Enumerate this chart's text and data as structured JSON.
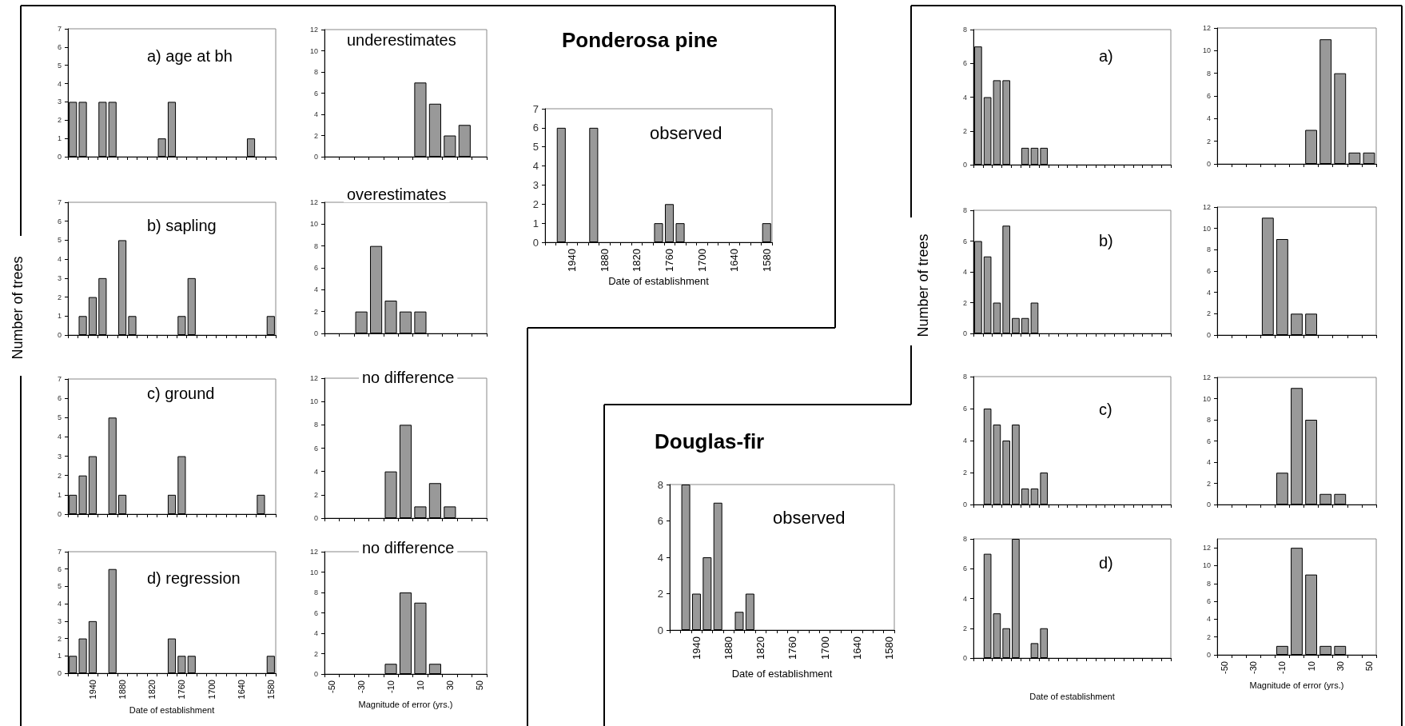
{
  "chart_data": [
    {
      "type": "bar",
      "title": "a) age at bh",
      "categories": [
        null,
        null,
        "1940",
        null,
        null,
        "1880",
        null,
        null,
        "1820",
        null,
        null,
        "1760",
        null,
        null,
        "1700",
        null,
        null,
        "1640",
        null,
        null,
        "1580"
      ],
      "values": [
        3,
        3,
        0,
        3,
        3,
        0,
        0,
        0,
        0,
        1,
        3,
        0,
        0,
        0,
        0,
        0,
        0,
        0,
        1,
        0,
        0
      ],
      "color": "#999999",
      "ylim": [
        0,
        7
      ],
      "yticks": [
        0,
        1,
        2,
        3,
        4,
        5,
        6,
        7
      ],
      "tick_labels": "y"
    },
    {
      "type": "bar",
      "title": "underestimates",
      "categories": [
        "-50",
        null,
        "-30",
        null,
        "-10",
        null,
        "10",
        null,
        "30",
        null,
        "50"
      ],
      "values": [
        0,
        0,
        0,
        0,
        0,
        0,
        7,
        5,
        2,
        3,
        0
      ],
      "color": "#999999",
      "ylim": [
        0,
        12
      ],
      "yticks": [
        0,
        2,
        4,
        6,
        8,
        10,
        12
      ],
      "tick_labels": "y"
    },
    {
      "type": "bar",
      "title": "b) sapling",
      "ylabel": "Number of trees",
      "categories": [
        null,
        null,
        "1940",
        null,
        null,
        "1880",
        null,
        null,
        "1820",
        null,
        null,
        "1760",
        null,
        null,
        "1700",
        null,
        null,
        "1640",
        null,
        null,
        "1580"
      ],
      "values": [
        0,
        1,
        2,
        3,
        0,
        5,
        1,
        0,
        0,
        0,
        0,
        1,
        3,
        0,
        0,
        0,
        0,
        0,
        0,
        0,
        1
      ],
      "color": "#999999",
      "ylim": [
        0,
        7
      ],
      "yticks": [
        0,
        1,
        2,
        3,
        4,
        5,
        6,
        7
      ],
      "tick_labels": "y"
    },
    {
      "type": "bar",
      "title": "overestimates",
      "categories": [
        "-50",
        null,
        "-30",
        null,
        "-10",
        null,
        "10",
        null,
        "30",
        null,
        "50"
      ],
      "values": [
        0,
        0,
        2,
        8,
        3,
        2,
        2,
        0,
        0,
        0,
        0
      ],
      "color": "#999999",
      "ylim": [
        0,
        12
      ],
      "yticks": [
        0,
        2,
        4,
        6,
        8,
        10,
        12
      ],
      "tick_labels": "y"
    },
    {
      "type": "bar",
      "title": "c) ground",
      "categories": [
        null,
        null,
        "1940",
        null,
        null,
        "1880",
        null,
        null,
        "1820",
        null,
        null,
        "1760",
        null,
        null,
        "1700",
        null,
        null,
        "1640",
        null,
        null,
        "1580"
      ],
      "values": [
        1,
        2,
        3,
        0,
        5,
        1,
        0,
        0,
        0,
        0,
        1,
        3,
        0,
        0,
        0,
        0,
        0,
        0,
        0,
        1,
        0
      ],
      "color": "#999999",
      "ylim": [
        0,
        7
      ],
      "yticks": [
        0,
        1,
        2,
        3,
        4,
        5,
        6,
        7
      ],
      "tick_labels": "y"
    },
    {
      "type": "bar",
      "title": "no difference",
      "categories": [
        "-50",
        null,
        "-30",
        null,
        "-10",
        null,
        "10",
        null,
        "30",
        null,
        "50"
      ],
      "values": [
        0,
        0,
        0,
        0,
        4,
        8,
        1,
        3,
        1,
        0,
        0
      ],
      "color": "#999999",
      "ylim": [
        0,
        12
      ],
      "yticks": [
        0,
        2,
        4,
        6,
        8,
        10,
        12
      ],
      "tick_labels": "y"
    },
    {
      "type": "bar",
      "title": "d) regression",
      "xlabel": "Date of establishment",
      "categories": [
        null,
        null,
        "1940",
        null,
        null,
        "1880",
        null,
        null,
        "1820",
        null,
        null,
        "1760",
        null,
        null,
        "1700",
        null,
        null,
        "1640",
        null,
        null,
        "1580"
      ],
      "values": [
        1,
        2,
        3,
        0,
        6,
        0,
        0,
        0,
        0,
        0,
        2,
        1,
        1,
        0,
        0,
        0,
        0,
        0,
        0,
        0,
        1
      ],
      "color": "#999999",
      "ylim": [
        0,
        7
      ],
      "yticks": [
        0,
        1,
        2,
        3,
        4,
        5,
        6,
        7
      ]
    },
    {
      "type": "bar",
      "title": "no difference",
      "xlabel": "Magnitude of error (yrs.)",
      "categories": [
        "-50",
        null,
        "-30",
        null,
        "-10",
        null,
        "10",
        null,
        "30",
        null,
        "50"
      ],
      "values": [
        0,
        0,
        0,
        0,
        1,
        8,
        7,
        1,
        0,
        0,
        0
      ],
      "color": "#999999",
      "ylim": [
        0,
        12
      ],
      "yticks": [
        0,
        2,
        4,
        6,
        8,
        10,
        12
      ]
    },
    {
      "type": "bar",
      "title": "Ponderosa pine",
      "annotations": [
        "observed"
      ],
      "xlabel": "Date of establishment",
      "categories": [
        null,
        null,
        "1940",
        null,
        null,
        "1880",
        null,
        null,
        "1820",
        null,
        null,
        "1760",
        null,
        null,
        "1700",
        null,
        null,
        "1640",
        null,
        null,
        "1580"
      ],
      "values": [
        0,
        6,
        0,
        0,
        6,
        0,
        0,
        0,
        0,
        0,
        1,
        2,
        1,
        0,
        0,
        0,
        0,
        0,
        0,
        0,
        1
      ],
      "color": "#999999",
      "ylim": [
        0,
        7
      ],
      "yticks": [
        0,
        1,
        2,
        3,
        4,
        5,
        6,
        7
      ]
    },
    {
      "type": "bar",
      "title": "Douglas-fir",
      "annotations": [
        "observed"
      ],
      "xlabel": "Date of establishment",
      "categories": [
        null,
        null,
        "1940",
        null,
        null,
        "1880",
        null,
        null,
        "1820",
        null,
        null,
        "1760",
        null,
        null,
        "1700",
        null,
        null,
        "1640",
        null,
        null,
        "1580"
      ],
      "values": [
        0,
        8,
        2,
        4,
        7,
        0,
        1,
        2,
        0,
        0,
        0,
        0,
        0,
        0,
        0,
        0,
        0,
        0,
        0,
        0,
        0
      ],
      "color": "#999999",
      "ylim": [
        0,
        8
      ],
      "yticks": [
        0,
        2,
        4,
        6,
        8
      ]
    },
    {
      "type": "bar",
      "title": "a)",
      "categories": [
        null,
        null,
        null,
        null,
        null,
        null,
        null,
        null,
        null,
        null,
        null,
        null,
        null,
        null,
        null,
        null,
        null,
        null,
        null,
        null,
        null
      ],
      "values": [
        7,
        4,
        5,
        5,
        0,
        1,
        1,
        1,
        0,
        0,
        0,
        0,
        0,
        0,
        0,
        0,
        0,
        0,
        0,
        0,
        0
      ],
      "color": "#999999",
      "ylim": [
        0,
        8
      ],
      "yticks": [
        0,
        2,
        4,
        6,
        8
      ]
    },
    {
      "type": "bar",
      "categories": [
        "-50",
        null,
        "-30",
        null,
        "-10",
        null,
        "10",
        null,
        "30",
        null,
        "50"
      ],
      "values": [
        0,
        0,
        0,
        0,
        0,
        0,
        3,
        11,
        8,
        1,
        1
      ],
      "color": "#999999",
      "ylim": [
        0,
        12
      ],
      "yticks": [
        0,
        2,
        4,
        6,
        8,
        10,
        12
      ],
      "tick_labels": "y"
    },
    {
      "type": "bar",
      "title": "b)",
      "ylabel": "Number of trees",
      "categories": [
        null,
        null,
        null,
        null,
        null,
        null,
        null,
        null,
        null,
        null,
        null,
        null,
        null,
        null,
        null,
        null,
        null,
        null,
        null,
        null,
        null
      ],
      "values": [
        6,
        5,
        2,
        7,
        1,
        1,
        2,
        0,
        0,
        0,
        0,
        0,
        0,
        0,
        0,
        0,
        0,
        0,
        0,
        0,
        0
      ],
      "color": "#999999",
      "ylim": [
        0,
        8
      ],
      "yticks": [
        0,
        2,
        4,
        6,
        8
      ]
    },
    {
      "type": "bar",
      "categories": [
        "-50",
        null,
        "-30",
        null,
        "-10",
        null,
        "10",
        null,
        "30",
        null,
        "50"
      ],
      "values": [
        0,
        0,
        0,
        11,
        9,
        2,
        2,
        0,
        0,
        0,
        0
      ],
      "color": "#999999",
      "ylim": [
        0,
        12
      ],
      "yticks": [
        0,
        2,
        4,
        6,
        8,
        10,
        12
      ],
      "tick_labels": "y"
    },
    {
      "type": "bar",
      "title": "c)",
      "categories": [
        null,
        null,
        null,
        null,
        null,
        null,
        null,
        null,
        null,
        null,
        null,
        null,
        null,
        null,
        null,
        null,
        null,
        null,
        null,
        null,
        null
      ],
      "values": [
        0,
        6,
        5,
        4,
        5,
        1,
        1,
        2,
        0,
        0,
        0,
        0,
        0,
        0,
        0,
        0,
        0,
        0,
        0,
        0,
        0
      ],
      "color": "#999999",
      "ylim": [
        0,
        8
      ],
      "yticks": [
        0,
        2,
        4,
        6,
        8
      ]
    },
    {
      "type": "bar",
      "categories": [
        "-50",
        null,
        "-30",
        null,
        "-10",
        null,
        "10",
        null,
        "30",
        null,
        "50"
      ],
      "values": [
        0,
        0,
        0,
        0,
        3,
        11,
        8,
        1,
        1,
        0,
        0
      ],
      "color": "#999999",
      "ylim": [
        0,
        12
      ],
      "yticks": [
        0,
        2,
        4,
        6,
        8,
        10,
        12
      ],
      "tick_labels": "y"
    },
    {
      "type": "bar",
      "title": "d)",
      "xlabel": "Date of establishment",
      "categories": [
        null,
        null,
        null,
        null,
        null,
        null,
        null,
        null,
        null,
        null,
        null,
        null,
        null,
        null,
        null,
        null,
        null,
        null,
        null,
        null,
        null
      ],
      "values": [
        0,
        7,
        3,
        2,
        8,
        0,
        1,
        2,
        0,
        0,
        0,
        0,
        0,
        0,
        0,
        0,
        0,
        0,
        0,
        0,
        0
      ],
      "color": "#999999",
      "ylim": [
        0,
        8
      ],
      "yticks": [
        0,
        2,
        4,
        6,
        8
      ]
    },
    {
      "type": "bar",
      "xlabel": "Magnitude of error (yrs.)",
      "categories": [
        "-50",
        null,
        "-30",
        null,
        "-10",
        null,
        "10",
        null,
        "30",
        null,
        "50"
      ],
      "values": [
        0,
        0,
        0,
        0,
        1,
        12,
        9,
        1,
        1,
        0,
        0
      ],
      "color": "#999999",
      "ylim": [
        0,
        13
      ],
      "yticks": [
        0,
        2,
        4,
        6,
        8,
        10,
        12
      ]
    }
  ]
}
